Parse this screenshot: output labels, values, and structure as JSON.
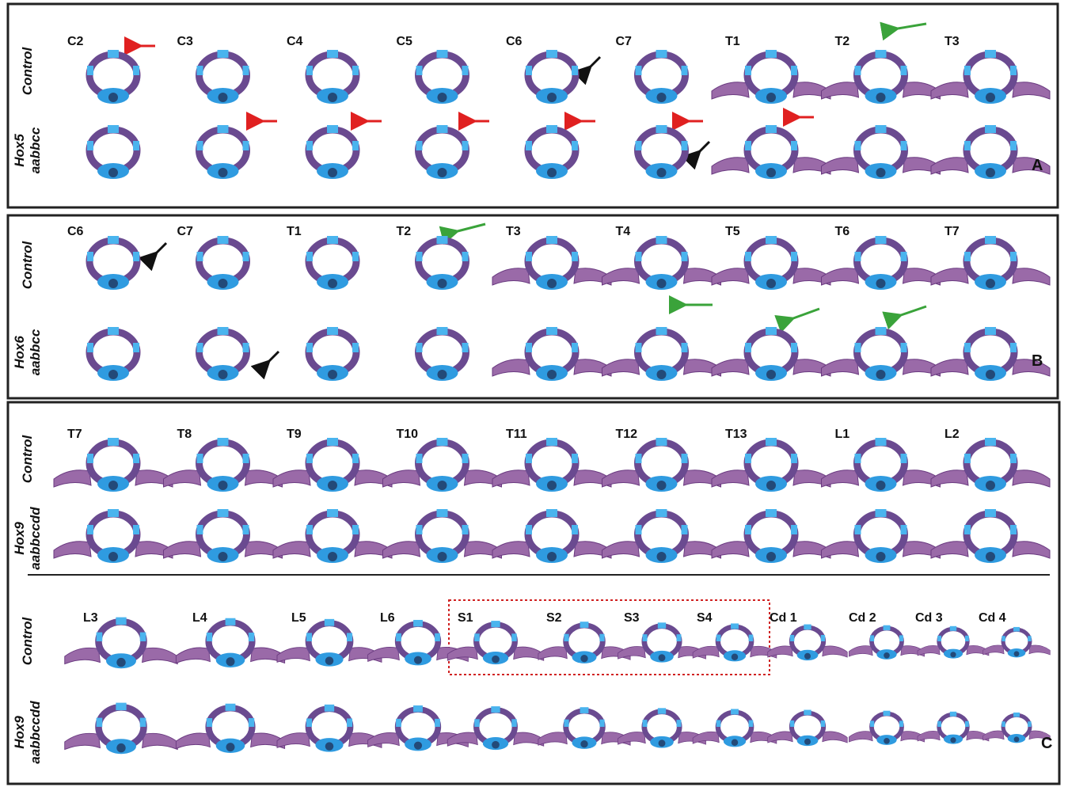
{
  "panels": [
    {
      "letter": "A",
      "rows": [
        {
          "genotype": [
            "Control"
          ],
          "vertebrae": [
            "C2",
            "C3",
            "C4",
            "C5",
            "C6",
            "C7",
            "T1",
            "T2",
            "T3"
          ]
        },
        {
          "genotype": [
            "Hox5",
            "aabbcc"
          ]
        }
      ]
    },
    {
      "letter": "B",
      "rows": [
        {
          "genotype": [
            "Control"
          ],
          "vertebrae": [
            "C6",
            "C7",
            "T1",
            "T2",
            "T3",
            "T4",
            "T5",
            "T6",
            "T7"
          ]
        },
        {
          "genotype": [
            "Hox6",
            "aabbcc"
          ]
        }
      ]
    },
    {
      "letter": "C",
      "rows": [
        {
          "genotype": [
            "Control"
          ],
          "vertebrae": [
            "T7",
            "T8",
            "T9",
            "T10",
            "T11",
            "T12",
            "T13",
            "L1",
            "L2"
          ]
        },
        {
          "genotype": [
            "Hox9",
            "aabbccdd"
          ]
        },
        {
          "genotype": [
            "Control"
          ],
          "vertebrae": [
            "L3",
            "L4",
            "L5",
            "L6",
            "S1",
            "S2",
            "S3",
            "S4",
            "Cd 1",
            "Cd 2",
            "Cd 3",
            "Cd 4"
          ]
        },
        {
          "genotype": [
            "Hox9",
            "aabbccdd"
          ]
        }
      ]
    }
  ]
}
